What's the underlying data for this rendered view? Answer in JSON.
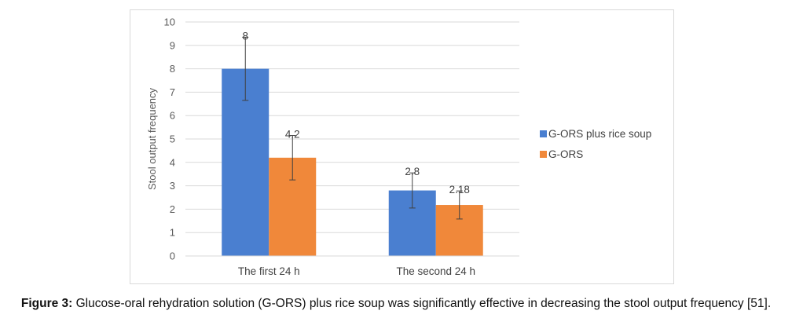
{
  "chart_data": {
    "type": "bar",
    "categories": [
      "The first 24 h",
      "The second 24 h"
    ],
    "series": [
      {
        "name": "G-ORS plus rice soup",
        "values": [
          8,
          2.8
        ],
        "error": [
          1.35,
          0.75
        ],
        "labels": [
          "8",
          "2.8"
        ],
        "color": "#4a7fd0"
      },
      {
        "name": "G-ORS",
        "values": [
          4.2,
          2.18
        ],
        "error": [
          0.95,
          0.6
        ],
        "labels": [
          "4.2",
          "2.18"
        ],
        "color": "#f0883a"
      }
    ],
    "ylabel": "Stool output frequency",
    "ylim": [
      0,
      10
    ],
    "yticks": [
      0,
      1,
      2,
      3,
      4,
      5,
      6,
      7,
      8,
      9,
      10
    ],
    "grid": true,
    "legend_position": "right",
    "gridline_color": "#d9d9d9"
  },
  "caption": {
    "label": "Figure 3:",
    "text": " Glucose-oral rehydration solution (G-ORS) plus rice soup was significantly effective in decreasing the stool output frequency [51]."
  }
}
